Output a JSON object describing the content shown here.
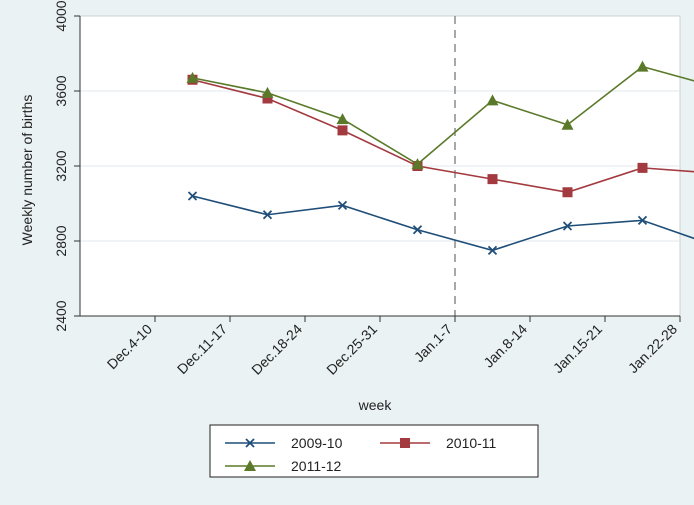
{
  "chart_data": {
    "type": "line",
    "title": "",
    "xlabel": "week",
    "ylabel": "Weekly number of births",
    "ylim": [
      2400,
      4000
    ],
    "yticks": [
      2400,
      2800,
      3200,
      3600,
      4000
    ],
    "grid": true,
    "legend_position": "bottom",
    "categories": [
      "Dec.4-10",
      "Dec.11-17",
      "Dec.18-24",
      "Dec.25-31",
      "Jan.1-7",
      "Jan.8-14",
      "Jan.15-21",
      "Jan.22-28"
    ],
    "x_points": [
      1.5,
      2.5,
      3.5,
      4.5,
      5.5,
      6.5,
      7.5
    ],
    "reference_line_x": 5,
    "series": [
      {
        "name": "2009-10",
        "marker": "x",
        "color": "#1f4e79",
        "values": [
          3040,
          2940,
          2990,
          2860,
          2750,
          2880,
          2910,
          2770
        ]
      },
      {
        "name": "2010-11",
        "marker": "square",
        "color": "#a33a3f",
        "values": [
          3660,
          3560,
          3390,
          3200,
          3130,
          3060,
          3190,
          3160
        ]
      },
      {
        "name": "2011-12",
        "marker": "triangle",
        "color": "#5a7a2a",
        "values": [
          3670,
          3590,
          3450,
          3210,
          3550,
          3420,
          3730,
          3620
        ]
      }
    ]
  }
}
